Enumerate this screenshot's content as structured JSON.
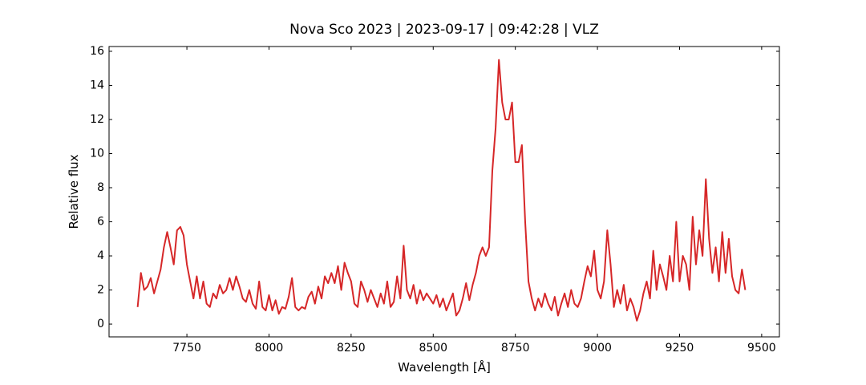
{
  "chart_data": {
    "type": "line",
    "title": "Nova Sco 2023 | 2023-09-17 | 09:42:28 | VLZ",
    "x_label": "Wavelength [Å]",
    "y_label": "Relative flux",
    "color": "#d62728",
    "xlim": [
      7513,
      9554
    ],
    "ylim": [
      -0.75,
      16.28
    ],
    "xticks": [
      7750,
      8000,
      8250,
      8500,
      8750,
      9000,
      9250,
      9500
    ],
    "yticks": [
      0,
      2,
      4,
      6,
      8,
      10,
      12,
      14,
      16
    ],
    "x": [
      7600,
      7610,
      7620,
      7630,
      7640,
      7650,
      7660,
      7670,
      7680,
      7690,
      7700,
      7710,
      7720,
      7730,
      7740,
      7750,
      7760,
      7770,
      7780,
      7790,
      7800,
      7810,
      7820,
      7830,
      7840,
      7850,
      7860,
      7870,
      7880,
      7890,
      7900,
      7910,
      7920,
      7930,
      7940,
      7950,
      7960,
      7970,
      7980,
      7990,
      8000,
      8010,
      8020,
      8030,
      8040,
      8050,
      8060,
      8070,
      8080,
      8090,
      8100,
      8110,
      8120,
      8130,
      8140,
      8150,
      8160,
      8170,
      8180,
      8190,
      8200,
      8210,
      8220,
      8230,
      8240,
      8250,
      8260,
      8270,
      8280,
      8290,
      8300,
      8310,
      8320,
      8330,
      8340,
      8350,
      8360,
      8370,
      8380,
      8390,
      8400,
      8410,
      8420,
      8430,
      8440,
      8450,
      8460,
      8470,
      8480,
      8490,
      8500,
      8510,
      8520,
      8530,
      8540,
      8550,
      8560,
      8570,
      8580,
      8590,
      8600,
      8610,
      8620,
      8630,
      8640,
      8650,
      8660,
      8670,
      8680,
      8690,
      8700,
      8710,
      8720,
      8730,
      8740,
      8750,
      8760,
      8770,
      8780,
      8790,
      8800,
      8810,
      8820,
      8830,
      8840,
      8850,
      8860,
      8870,
      8880,
      8890,
      8900,
      8910,
      8920,
      8930,
      8940,
      8950,
      8960,
      8970,
      8980,
      8990,
      9000,
      9010,
      9020,
      9030,
      9040,
      9050,
      9060,
      9070,
      9080,
      9090,
      9100,
      9110,
      9120,
      9130,
      9140,
      9150,
      9160,
      9170,
      9180,
      9190,
      9200,
      9210,
      9220,
      9230,
      9240,
      9250,
      9260,
      9270,
      9280,
      9290,
      9300,
      9310,
      9320,
      9330,
      9340,
      9350,
      9360,
      9370,
      9380,
      9390,
      9400,
      9410,
      9420,
      9430,
      9440,
      9450
    ],
    "values": [
      1.0,
      3.0,
      2.0,
      2.2,
      2.7,
      1.8,
      2.5,
      3.2,
      4.5,
      5.4,
      4.5,
      3.5,
      5.5,
      5.7,
      5.2,
      3.5,
      2.5,
      1.5,
      2.8,
      1.5,
      2.5,
      1.2,
      1.0,
      1.8,
      1.5,
      2.3,
      1.8,
      2.0,
      2.7,
      2.0,
      2.8,
      2.2,
      1.5,
      1.3,
      2.0,
      1.2,
      0.9,
      2.5,
      1.0,
      0.8,
      1.7,
      0.8,
      1.4,
      0.6,
      1.0,
      0.9,
      1.6,
      2.7,
      1.0,
      0.8,
      1.0,
      0.9,
      1.6,
      1.9,
      1.2,
      2.2,
      1.5,
      2.8,
      2.4,
      3.0,
      2.4,
      3.4,
      2.0,
      3.6,
      3.0,
      2.5,
      1.2,
      1.0,
      2.5,
      2.0,
      1.3,
      2.0,
      1.5,
      1.0,
      1.8,
      1.2,
      2.5,
      1.0,
      1.3,
      2.8,
      1.5,
      4.6,
      2.0,
      1.5,
      2.3,
      1.2,
      2.0,
      1.4,
      1.8,
      1.5,
      1.2,
      1.7,
      1.0,
      1.5,
      0.8,
      1.3,
      1.8,
      0.5,
      0.8,
      1.5,
      2.4,
      1.4,
      2.3,
      3.0,
      4.0,
      4.5,
      4.0,
      4.5,
      9.0,
      11.5,
      15.5,
      13.0,
      12.0,
      12.0,
      13.0,
      9.5,
      9.5,
      10.5,
      6.0,
      2.5,
      1.5,
      0.8,
      1.5,
      1.0,
      1.8,
      1.2,
      0.8,
      1.6,
      0.5,
      1.2,
      1.8,
      1.0,
      2.0,
      1.2,
      1.0,
      1.5,
      2.5,
      3.4,
      2.8,
      4.3,
      2.0,
      1.5,
      2.5,
      5.5,
      3.5,
      1.0,
      2.0,
      1.2,
      2.3,
      0.8,
      1.5,
      1.0,
      0.2,
      0.8,
      1.8,
      2.5,
      1.5,
      4.3,
      2.0,
      3.5,
      2.8,
      2.0,
      4.0,
      2.5,
      6.0,
      2.5,
      4.0,
      3.5,
      2.0,
      6.3,
      3.5,
      5.5,
      4.0,
      8.5,
      5.0,
      3.0,
      4.5,
      2.5,
      5.4,
      3.0,
      5.0,
      2.8,
      2.0,
      1.8,
      3.2,
      2.0
    ]
  }
}
